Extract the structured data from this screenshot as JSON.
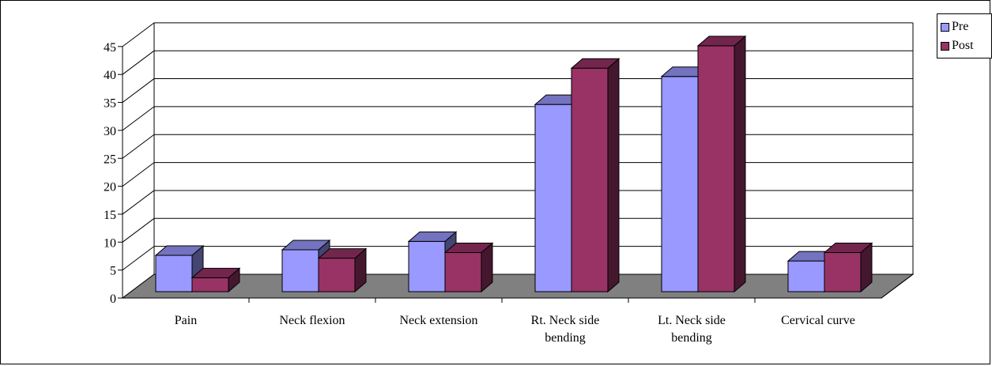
{
  "chart_data": {
    "type": "bar",
    "title": "",
    "xlabel": "",
    "ylabel": "",
    "ylim": [
      0,
      45
    ],
    "yticks": [
      0,
      5,
      10,
      15,
      20,
      25,
      30,
      35,
      40,
      45
    ],
    "grid": true,
    "three_d": true,
    "legend_position": "top-right",
    "categories": [
      [
        "Pain"
      ],
      [
        "Neck flexion"
      ],
      [
        "Neck extension"
      ],
      [
        "Rt. Neck side",
        "bending"
      ],
      [
        "Lt. Neck side",
        "bending"
      ],
      [
        "Cervical curve"
      ]
    ],
    "series": [
      {
        "name": "Pre",
        "color": "#9999ff",
        "values": [
          6.5,
          7.5,
          9,
          33.5,
          38.5,
          5.5
        ]
      },
      {
        "name": "Post",
        "color": "#993366",
        "values": [
          2.5,
          6,
          7,
          40,
          44,
          7
        ]
      }
    ]
  }
}
